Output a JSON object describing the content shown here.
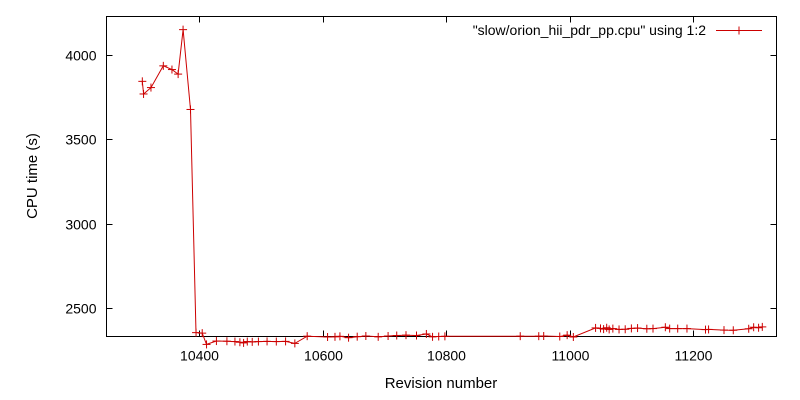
{
  "chart_data": {
    "type": "line",
    "xlabel": "Revision number",
    "ylabel": "CPU time (s)",
    "xlim": [
      10250,
      11335
    ],
    "ylim": [
      2330,
      4230
    ],
    "grid": false,
    "legend": {
      "placement": "top-right"
    },
    "x_ticks": [
      {
        "value": 10400,
        "label": "10400"
      },
      {
        "value": 10600,
        "label": "10600"
      },
      {
        "value": 10800,
        "label": "10800"
      },
      {
        "value": 11000,
        "label": "11000"
      },
      {
        "value": 11200,
        "label": "11200"
      }
    ],
    "y_ticks": [
      {
        "value": 2500,
        "label": "2500"
      },
      {
        "value": 3000,
        "label": "3000"
      },
      {
        "value": 3500,
        "label": "3500"
      },
      {
        "value": 4000,
        "label": "4000"
      }
    ],
    "series": [
      {
        "name": "\"slow/orion_hii_pdr_pp.cpu\" using 1:2",
        "color": "#cc0000",
        "marker": "plus",
        "points": [
          [
            10308,
            3845
          ],
          [
            10310,
            3770
          ],
          [
            10322,
            3808
          ],
          [
            10342,
            3937
          ],
          [
            10356,
            3915
          ],
          [
            10366,
            3888
          ],
          [
            10374,
            4152
          ],
          [
            10386,
            3678
          ],
          [
            10395,
            2353
          ],
          [
            10405,
            2350
          ],
          [
            10412,
            2283
          ],
          [
            10428,
            2303
          ],
          [
            10445,
            2302
          ],
          [
            10458,
            2300
          ],
          [
            10466,
            2296
          ],
          [
            10472,
            2292
          ],
          [
            10478,
            2300
          ],
          [
            10486,
            2298
          ],
          [
            10496,
            2300
          ],
          [
            10510,
            2301
          ],
          [
            10525,
            2300
          ],
          [
            10540,
            2301
          ],
          [
            10555,
            2289
          ],
          [
            10575,
            2332
          ],
          [
            10608,
            2327
          ],
          [
            10620,
            2328
          ],
          [
            10628,
            2331
          ],
          [
            10642,
            2323
          ],
          [
            10656,
            2329
          ],
          [
            10670,
            2333
          ],
          [
            10690,
            2328
          ],
          [
            10706,
            2333
          ],
          [
            10720,
            2336
          ],
          [
            10735,
            2338
          ],
          [
            10752,
            2336
          ],
          [
            10768,
            2345
          ],
          [
            10778,
            2328
          ],
          [
            10788,
            2330
          ],
          [
            10798,
            2331
          ],
          [
            10920,
            2332
          ],
          [
            10950,
            2332
          ],
          [
            10958,
            2333
          ],
          [
            10984,
            2330
          ],
          [
            10996,
            2338
          ],
          [
            11006,
            2327
          ],
          [
            11042,
            2381
          ],
          [
            11050,
            2378
          ],
          [
            11055,
            2374
          ],
          [
            11060,
            2382
          ],
          [
            11064,
            2372
          ],
          [
            11070,
            2377
          ],
          [
            11080,
            2372
          ],
          [
            11090,
            2373
          ],
          [
            11100,
            2378
          ],
          [
            11110,
            2380
          ],
          [
            11125,
            2376
          ],
          [
            11135,
            2377
          ],
          [
            11155,
            2385
          ],
          [
            11162,
            2377
          ],
          [
            11175,
            2377
          ],
          [
            11190,
            2377
          ],
          [
            11220,
            2371
          ],
          [
            11225,
            2372
          ],
          [
            11250,
            2368
          ],
          [
            11265,
            2367
          ],
          [
            11290,
            2376
          ],
          [
            11298,
            2385
          ],
          [
            11306,
            2382
          ],
          [
            11312,
            2387
          ]
        ]
      }
    ]
  }
}
